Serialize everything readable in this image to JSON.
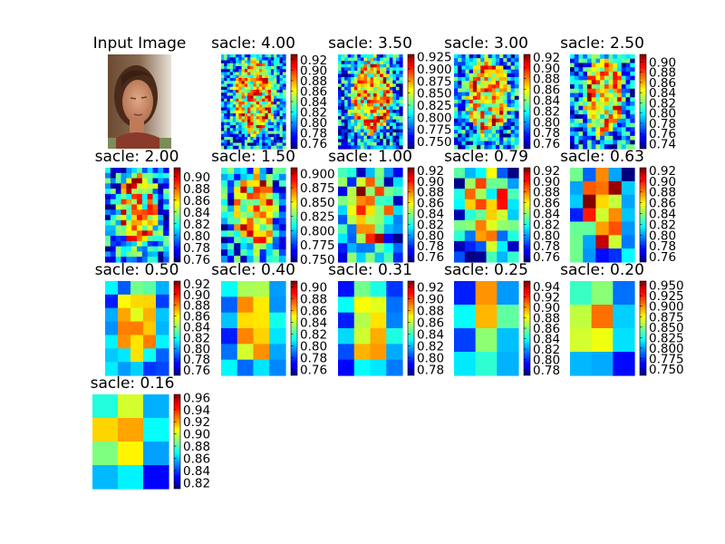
{
  "figure": {
    "input_title": "Input Image",
    "title_prefix": "sacle: "
  },
  "colormap": "jet",
  "chart_data": [
    {
      "type": "heatmap",
      "title": "sacle: 4.00",
      "scale": 4.0,
      "colorbar_ticks": [
        "0.76",
        "0.78",
        "0.80",
        "0.82",
        "0.84",
        "0.86",
        "0.88",
        "0.90",
        "0.92"
      ],
      "range": [
        0.75,
        0.93
      ]
    },
    {
      "type": "heatmap",
      "title": "sacle: 3.50",
      "scale": 3.5,
      "colorbar_ticks": [
        "0.750",
        "0.775",
        "0.800",
        "0.825",
        "0.850",
        "0.875",
        "0.900",
        "0.925"
      ],
      "range": [
        0.735,
        0.93
      ]
    },
    {
      "type": "heatmap",
      "title": "sacle: 3.00",
      "scale": 3.0,
      "colorbar_ticks": [
        "0.76",
        "0.78",
        "0.80",
        "0.82",
        "0.84",
        "0.86",
        "0.88",
        "0.90",
        "0.92"
      ],
      "range": [
        0.75,
        0.925
      ]
    },
    {
      "type": "heatmap",
      "title": "sacle: 2.50",
      "scale": 2.5,
      "colorbar_ticks": [
        "0.74",
        "0.76",
        "0.78",
        "0.80",
        "0.82",
        "0.84",
        "0.86",
        "0.88",
        "0.90"
      ],
      "range": [
        0.73,
        0.915
      ]
    },
    {
      "type": "heatmap",
      "title": "sacle: 2.00",
      "scale": 2.0,
      "colorbar_ticks": [
        "0.76",
        "0.78",
        "0.80",
        "0.82",
        "0.84",
        "0.86",
        "0.88",
        "0.90"
      ],
      "range": [
        0.755,
        0.915
      ]
    },
    {
      "type": "heatmap",
      "title": "sacle: 1.50",
      "scale": 1.5,
      "colorbar_ticks": [
        "0.750",
        "0.775",
        "0.800",
        "0.825",
        "0.850",
        "0.875",
        "0.900"
      ],
      "range": [
        0.745,
        0.91
      ]
    },
    {
      "type": "heatmap",
      "title": "sacle: 1.00",
      "scale": 1.0,
      "colorbar_ticks": [
        "0.76",
        "0.78",
        "0.80",
        "0.82",
        "0.84",
        "0.86",
        "0.88",
        "0.90",
        "0.92"
      ],
      "range": [
        0.75,
        0.925
      ]
    },
    {
      "type": "heatmap",
      "title": "sacle: 0.79",
      "scale": 0.79,
      "colorbar_ticks": [
        "0.76",
        "0.78",
        "0.80",
        "0.82",
        "0.84",
        "0.86",
        "0.88",
        "0.90",
        "0.92"
      ],
      "range": [
        0.75,
        0.925
      ]
    },
    {
      "type": "heatmap",
      "title": "sacle: 0.63",
      "scale": 0.63,
      "colorbar_ticks": [
        "0.76",
        "0.78",
        "0.80",
        "0.82",
        "0.84",
        "0.86",
        "0.88",
        "0.90",
        "0.92"
      ],
      "range": [
        0.75,
        0.925
      ]
    },
    {
      "type": "heatmap",
      "title": "sacle: 0.50",
      "scale": 0.5,
      "colorbar_ticks": [
        "0.76",
        "0.78",
        "0.80",
        "0.82",
        "0.84",
        "0.86",
        "0.88",
        "0.90",
        "0.92"
      ],
      "range": [
        0.75,
        0.925
      ]
    },
    {
      "type": "heatmap",
      "title": "sacle: 0.40",
      "scale": 0.4,
      "colorbar_ticks": [
        "0.76",
        "0.78",
        "0.80",
        "0.82",
        "0.84",
        "0.86",
        "0.88",
        "0.90"
      ],
      "range": [
        0.75,
        0.91
      ]
    },
    {
      "type": "heatmap",
      "title": "sacle: 0.31",
      "scale": 0.31,
      "colorbar_ticks": [
        "0.78",
        "0.80",
        "0.82",
        "0.84",
        "0.86",
        "0.88",
        "0.90",
        "0.92"
      ],
      "range": [
        0.77,
        0.93
      ]
    },
    {
      "type": "heatmap",
      "title": "sacle: 0.25",
      "scale": 0.25,
      "colorbar_ticks": [
        "0.78",
        "0.80",
        "0.82",
        "0.84",
        "0.86",
        "0.88",
        "0.90",
        "0.92",
        "0.94"
      ],
      "range": [
        0.77,
        0.95
      ]
    },
    {
      "type": "heatmap",
      "title": "sacle: 0.20",
      "scale": 0.2,
      "colorbar_ticks": [
        "0.750",
        "0.775",
        "0.800",
        "0.825",
        "0.850",
        "0.875",
        "0.900",
        "0.925",
        "0.950"
      ],
      "range": [
        0.735,
        0.96
      ]
    },
    {
      "type": "heatmap",
      "title": "sacle: 0.16",
      "scale": 0.16,
      "colorbar_ticks": [
        "0.82",
        "0.84",
        "0.86",
        "0.88",
        "0.90",
        "0.92",
        "0.94",
        "0.96"
      ],
      "range": [
        0.81,
        0.965
      ]
    }
  ]
}
